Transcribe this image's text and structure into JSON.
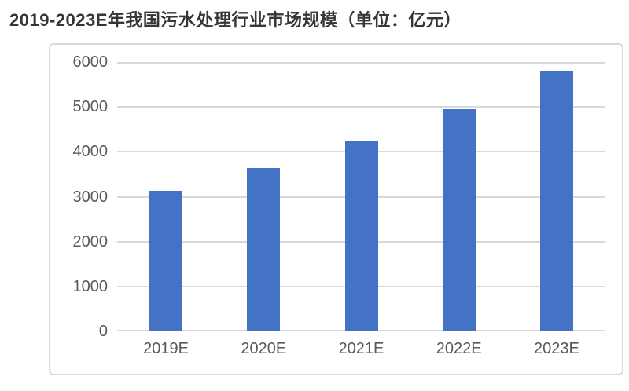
{
  "chart_data": {
    "type": "bar",
    "title": "2019-2023E年我国污水处理行业市场规模（单位：亿元）",
    "unit_label": "亿元",
    "categories": [
      "2019E",
      "2020E",
      "2021E",
      "2022E",
      "2023E"
    ],
    "values": [
      3130,
      3640,
      4230,
      4950,
      5800
    ],
    "xlabel": "",
    "ylabel": "",
    "ylim": [
      0,
      6000
    ],
    "yticks": [
      0,
      1000,
      2000,
      3000,
      4000,
      5000,
      6000
    ],
    "grid": true,
    "legend": false,
    "bar_color": "#4472c4",
    "grid_color": "#d9d9d9",
    "tick_label_color": "#595959",
    "title_color": "#363636",
    "frame_border_color": "#d9d9d9"
  }
}
